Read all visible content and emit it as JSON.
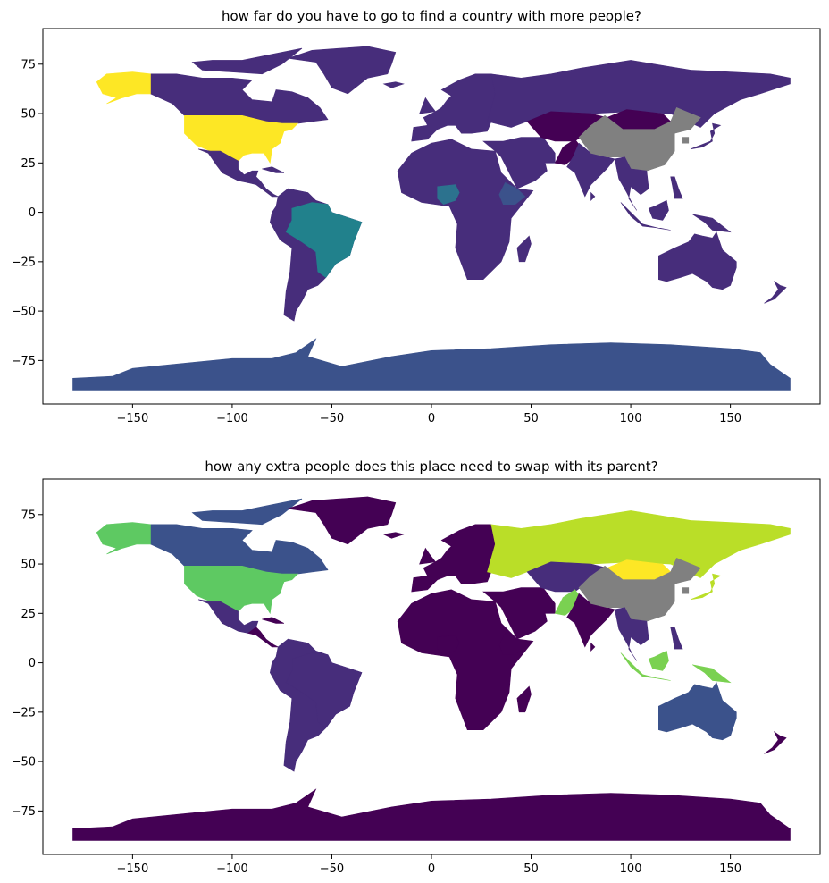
{
  "colors": {
    "viridis_0": "#440154",
    "viridis_1": "#472d7b",
    "viridis_2": "#3b528b",
    "viridis_3": "#2c728e",
    "viridis_4": "#21918c",
    "viridis_5": "#28ae80",
    "viridis_6": "#5ec962",
    "viridis_7": "#addc30",
    "viridis_8": "#fde725",
    "missing": "#808080"
  },
  "chart_data": [
    {
      "type": "choropleth",
      "title": "how far do you have to go to find a country with more people?",
      "xlim": [
        -195,
        195
      ],
      "ylim": [
        -97,
        93
      ],
      "xticks": [
        -150,
        -100,
        -50,
        0,
        50,
        100,
        150
      ],
      "yticks": [
        75,
        50,
        25,
        0,
        -25,
        -50,
        -75
      ],
      "regions": [
        {
          "name": "Antarctica",
          "color": "#3b528b"
        },
        {
          "name": "Canada",
          "color": "#472d7b"
        },
        {
          "name": "Greenland",
          "color": "#472d7b"
        },
        {
          "name": "Alaska",
          "color": "#fde725"
        },
        {
          "name": "United States",
          "color": "#fde725"
        },
        {
          "name": "Mexico",
          "color": "#472d7b"
        },
        {
          "name": "Central America",
          "color": "#472d7b"
        },
        {
          "name": "South America",
          "color": "#472d7b"
        },
        {
          "name": "Brazil",
          "color": "#21818c"
        },
        {
          "name": "Europe",
          "color": "#472d7b"
        },
        {
          "name": "Russia",
          "color": "#472d7b"
        },
        {
          "name": "Africa",
          "color": "#472d7b"
        },
        {
          "name": "Nigeria",
          "color": "#2c728e"
        },
        {
          "name": "Ethiopia",
          "color": "#3b528b"
        },
        {
          "name": "Middle East",
          "color": "#472d7b"
        },
        {
          "name": "Central Asia",
          "color": "#440154"
        },
        {
          "name": "India",
          "color": "#472d7b"
        },
        {
          "name": "China",
          "color": "#808080"
        },
        {
          "name": "Southeast Asia",
          "color": "#472d7b"
        },
        {
          "name": "Japan",
          "color": "#472d7b"
        },
        {
          "name": "Indonesia",
          "color": "#472d7b"
        },
        {
          "name": "Australia",
          "color": "#472d7b"
        },
        {
          "name": "New Zealand",
          "color": "#472d7b"
        }
      ]
    },
    {
      "type": "choropleth",
      "title": "how any extra people does this place need to swap with its parent?",
      "xlim": [
        -195,
        195
      ],
      "ylim": [
        -97,
        93
      ],
      "xticks": [
        -150,
        -100,
        -50,
        0,
        50,
        100,
        150
      ],
      "yticks": [
        75,
        50,
        25,
        0,
        -25,
        -50,
        -75
      ],
      "regions": [
        {
          "name": "Antarctica",
          "color": "#440154"
        },
        {
          "name": "Canada",
          "color": "#3b528b"
        },
        {
          "name": "Greenland",
          "color": "#440154"
        },
        {
          "name": "Alaska",
          "color": "#5ec962"
        },
        {
          "name": "United States",
          "color": "#5ec962"
        },
        {
          "name": "Mexico",
          "color": "#472d7b"
        },
        {
          "name": "Central America",
          "color": "#440154"
        },
        {
          "name": "South America",
          "color": "#472d7b"
        },
        {
          "name": "Brazil",
          "color": "#472d7b"
        },
        {
          "name": "Europe",
          "color": "#440154"
        },
        {
          "name": "Russia",
          "color": "#bade28"
        },
        {
          "name": "Africa",
          "color": "#440154"
        },
        {
          "name": "Nigeria",
          "color": "#440154"
        },
        {
          "name": "Ethiopia",
          "color": "#440154"
        },
        {
          "name": "Middle East",
          "color": "#440154"
        },
        {
          "name": "Central Asia",
          "color": "#472d7b"
        },
        {
          "name": "Mongolia",
          "color": "#fde725"
        },
        {
          "name": "Pakistan",
          "color": "#7ad151"
        },
        {
          "name": "India",
          "color": "#440154"
        },
        {
          "name": "China",
          "color": "#808080"
        },
        {
          "name": "Southeast Asia",
          "color": "#472d7b"
        },
        {
          "name": "Japan",
          "color": "#bade28"
        },
        {
          "name": "Indonesia",
          "color": "#7ad151"
        },
        {
          "name": "Australia",
          "color": "#3b528b"
        },
        {
          "name": "New Zealand",
          "color": "#440154"
        }
      ]
    }
  ]
}
